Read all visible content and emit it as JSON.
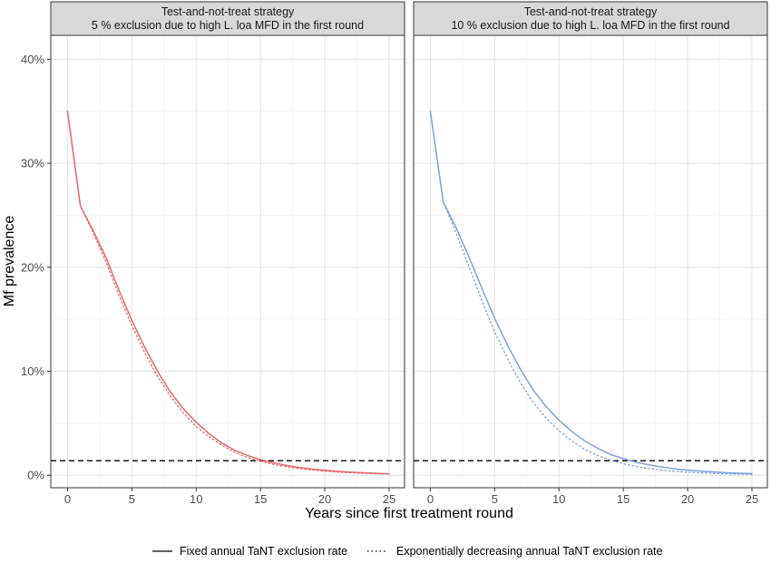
{
  "chart_data": {
    "type": "line",
    "ylabel": "Mf prevalence",
    "xlabel": "Years since first treatment round",
    "xlim": [
      -1.3,
      26.2
    ],
    "ylim": [
      -1.2,
      42.3
    ],
    "x_ticks": [
      0,
      5,
      10,
      15,
      20,
      25
    ],
    "x_tick_labels": [
      "0",
      "5",
      "10",
      "15",
      "20",
      "25"
    ],
    "y_ticks": [
      0,
      10,
      20,
      30,
      40
    ],
    "y_tick_labels": [
      "0%",
      "10%",
      "20%",
      "30%",
      "40%"
    ],
    "grid": true,
    "reference_line": {
      "y": 1.4,
      "style": "dashed"
    },
    "x": [
      0,
      1,
      2,
      3,
      4,
      5,
      6,
      7,
      8,
      9,
      10,
      11,
      12,
      13,
      14,
      15,
      16,
      17,
      18,
      19,
      20,
      21,
      22,
      23,
      24,
      25
    ],
    "panels": [
      {
        "title_line1": "Test-and-not-treat strategy",
        "title_line2": "5 % exclusion due to high L. loa MFD in the first round",
        "color": "#e8686a",
        "series": [
          {
            "name": "Fixed annual TaNT exclusion rate",
            "line_style": "solid",
            "values": [
              35.0,
              25.9,
              23.5,
              20.9,
              17.8,
              14.9,
              12.3,
              10.0,
              8.0,
              6.4,
              5.1,
              4.0,
              3.1,
              2.4,
              1.9,
              1.5,
              1.2,
              0.95,
              0.75,
              0.6,
              0.48,
              0.38,
              0.3,
              0.24,
              0.18,
              0.14
            ]
          },
          {
            "name": "Exponentially decreasing annual TaNT exclusion rate",
            "line_style": "dotted",
            "values": [
              35.0,
              25.9,
              23.3,
              20.5,
              17.3,
              14.4,
              11.8,
              9.5,
              7.6,
              6.0,
              4.7,
              3.7,
              2.9,
              2.2,
              1.7,
              1.35,
              1.05,
              0.82,
              0.64,
              0.5,
              0.39,
              0.31,
              0.24,
              0.19,
              0.15,
              0.12
            ]
          }
        ]
      },
      {
        "title_line1": "Test-and-not-treat strategy",
        "title_line2": "10 % exclusion due to high L. loa MFD in the first round",
        "color": "#7ba3dd",
        "series": [
          {
            "name": "Fixed annual TaNT exclusion rate",
            "line_style": "solid",
            "values": [
              35.0,
              26.3,
              23.8,
              21.0,
              18.0,
              15.1,
              12.5,
              10.2,
              8.2,
              6.6,
              5.3,
              4.2,
              3.3,
              2.6,
              2.0,
              1.6,
              1.25,
              1.0,
              0.8,
              0.62,
              0.5,
              0.4,
              0.32,
              0.25,
              0.2,
              0.16
            ]
          },
          {
            "name": "Exponentially decreasing annual TaNT exclusion rate",
            "line_style": "dotted",
            "values": [
              35.0,
              26.3,
              23.3,
              20.1,
              16.8,
              13.8,
              11.2,
              8.9,
              7.0,
              5.5,
              4.3,
              3.3,
              2.5,
              1.9,
              1.45,
              1.1,
              0.85,
              0.65,
              0.5,
              0.38,
              0.3,
              0.23,
              0.18,
              0.14,
              0.11,
              0.09
            ]
          }
        ]
      }
    ],
    "legend": {
      "position": "bottom",
      "items": [
        {
          "label": "Fixed annual TaNT exclusion rate",
          "line_style": "solid"
        },
        {
          "label": "Exponentially decreasing annual TaNT exclusion rate",
          "line_style": "dotted"
        }
      ]
    }
  }
}
